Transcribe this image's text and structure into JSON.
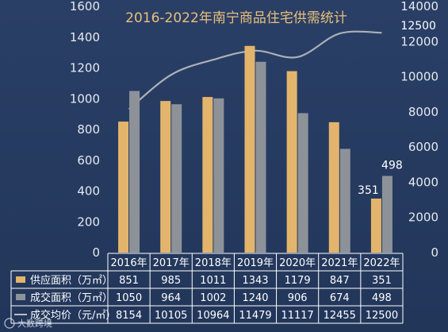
{
  "chart_data": {
    "type": "bar",
    "title": "2016-2022年南宁商品住宅供需统计",
    "categories": [
      "2016年",
      "2017年",
      "2018年",
      "2019年",
      "2020年",
      "2021年",
      "2022年"
    ],
    "ylim_left": [
      0,
      1600
    ],
    "yticks_left": [
      0,
      200,
      400,
      600,
      800,
      1000,
      1200,
      1400,
      1600
    ],
    "ylim_right": [
      0,
      14000
    ],
    "yticks_right": [
      0,
      2000,
      4000,
      6000,
      8000,
      10000,
      12000,
      14000
    ],
    "series": [
      {
        "name": "供应面积（万㎡）",
        "type": "bar",
        "axis": "left",
        "color": "#e3b56c",
        "values": [
          851,
          985,
          1011,
          1343,
          1179,
          847,
          351
        ]
      },
      {
        "name": "成交面积（万㎡）",
        "type": "bar",
        "axis": "left",
        "color": "#8d9299",
        "values": [
          1050,
          964,
          1002,
          1240,
          906,
          674,
          498
        ]
      },
      {
        "name": "成交均价（元/㎡）",
        "type": "line",
        "axis": "right",
        "color": "#b9bcc2",
        "values": [
          8154,
          10105,
          10964,
          11479,
          11117,
          12455,
          12500
        ]
      }
    ],
    "data_labels": [
      {
        "text": "351"
      },
      {
        "text": "498"
      },
      {
        "text": "12500"
      }
    ],
    "grid": false,
    "legend": "table-below"
  },
  "table": {
    "rows": [
      {
        "label": "供应面积（万㎡）",
        "values": [
          "851",
          "985",
          "1011",
          "1343",
          "1179",
          "847",
          "351"
        ]
      },
      {
        "label": "成交面积（万㎡）",
        "values": [
          "1050",
          "964",
          "1002",
          "1240",
          "906",
          "674",
          "498"
        ]
      },
      {
        "label": "成交均价（元/㎡）",
        "values": [
          "8154",
          "10105",
          "10964",
          "11479",
          "11117",
          "12455",
          "12500"
        ]
      }
    ]
  },
  "watermark": "大数跨境"
}
